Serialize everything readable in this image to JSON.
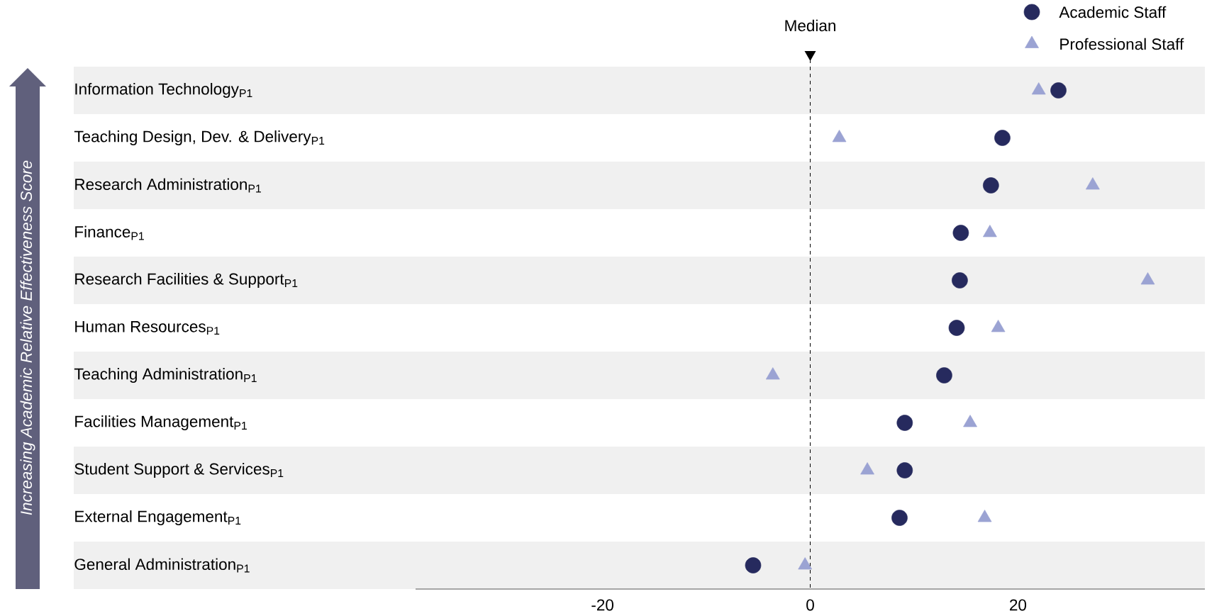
{
  "chart_data": {
    "type": "scatter",
    "ylabel": "Increasing Academic Relative Effectiveness Score",
    "categories": [
      "Information Technology$_{P1}$",
      "Teaching Design, Dev. & Delivery$_{P1}$",
      "Research Administration$_{P1}$",
      "Finance$_{P1}$",
      "Research Facilities & Support$_{P1}$",
      "Human Resources$_{P1}$",
      "Teaching Administration$_{P1}$",
      "Facilities Management$_{P1}$",
      "Student Support & Services$_{P1}$",
      "External Engagement$_{P1}$",
      "General Administration$_{P1}$"
    ],
    "orientation": "horizontal",
    "series": [
      {
        "name": "Academic Staff",
        "color": "#262a5e",
        "marker": "circle",
        "values": [
          23.9,
          18.5,
          17.4,
          14.5,
          14.4,
          14.1,
          12.9,
          9.1,
          9.1,
          8.6,
          -5.5
        ]
      },
      {
        "name": "Professional Staff",
        "color": "#9ba3d3",
        "marker": "triangle",
        "values": [
          22.0,
          2.8,
          27.2,
          17.3,
          32.5,
          18.1,
          -3.6,
          15.4,
          5.5,
          16.8,
          -0.5
        ]
      }
    ],
    "xlim": [
      -38,
      38
    ],
    "xticks": [
      -20,
      0,
      20
    ],
    "ref_lines": [
      {
        "axis": "x",
        "value": 0,
        "label": "Median",
        "line_style": "dashed"
      }
    ],
    "legend": "top right"
  }
}
